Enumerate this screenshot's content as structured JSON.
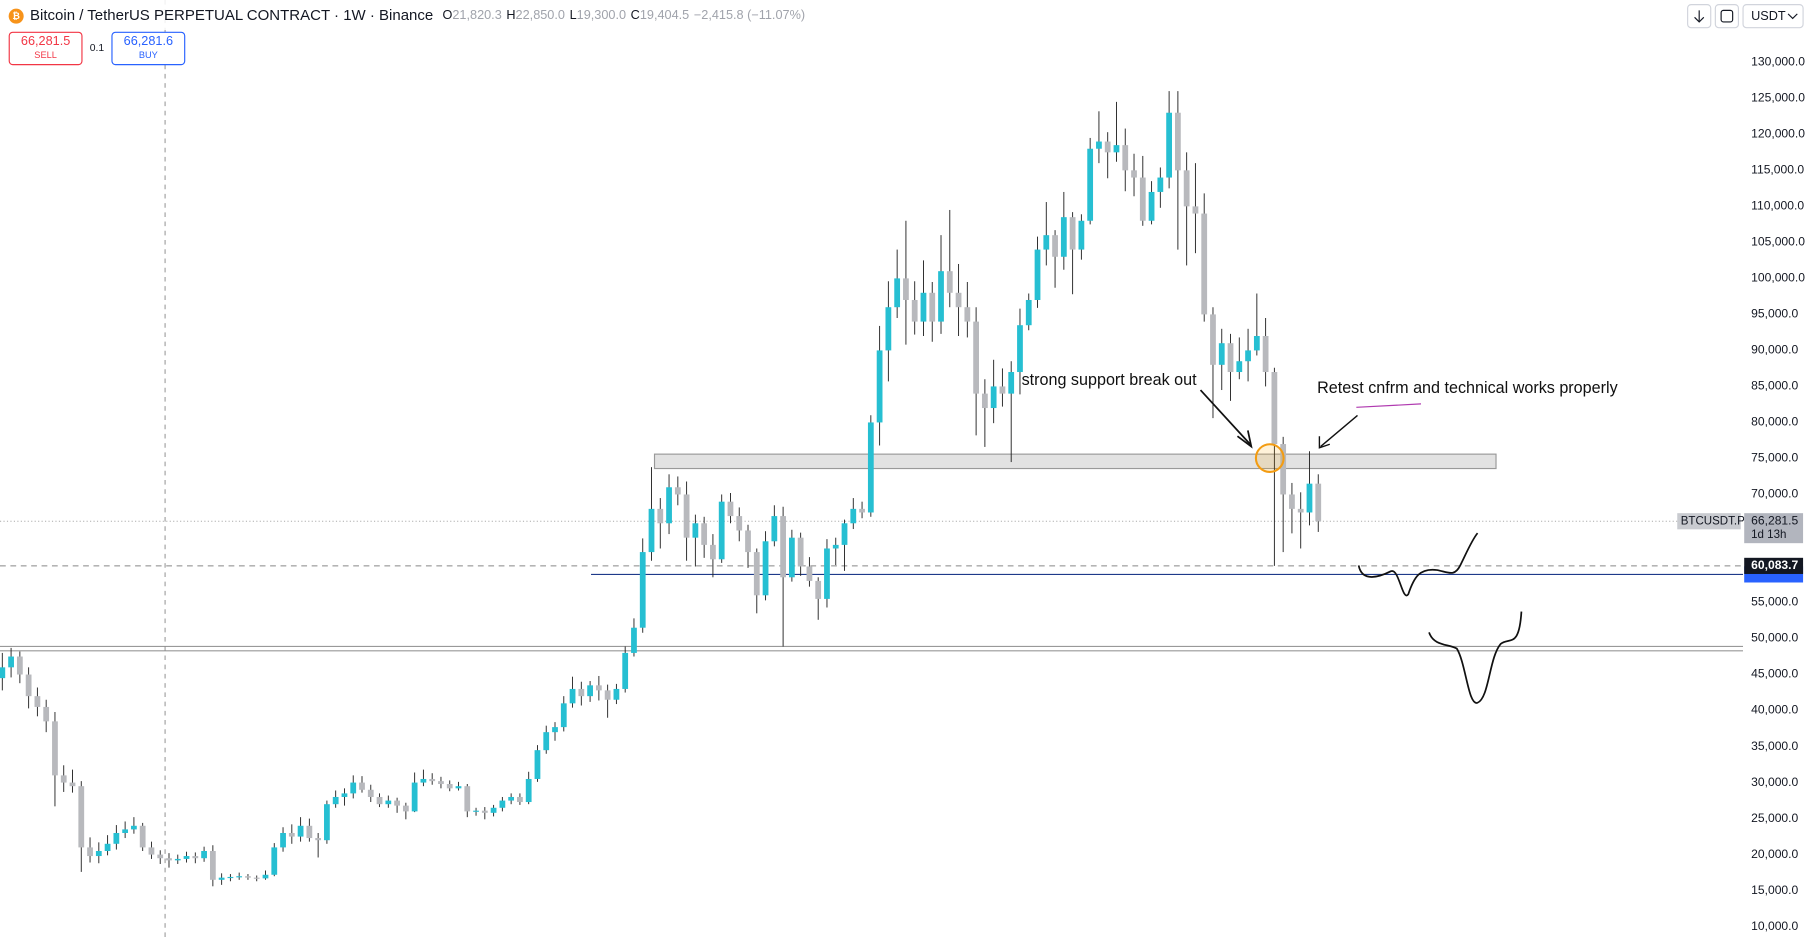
{
  "chart_data": {
    "type": "candlestick",
    "title": "Bitcoin / TetherUS PERPETUAL CONTRACT · 1W · Binance",
    "ohlc_legend": [
      [
        "O",
        "21,820.3"
      ],
      [
        "H",
        "22,850.0"
      ],
      [
        "L",
        "19,300.0"
      ],
      [
        "C",
        "19,404.5"
      ]
    ],
    "change": "−2,415.8 (−11.07%)",
    "currency": "USDT",
    "trade": {
      "sell_price": "66,281.5",
      "sell": "SELL",
      "qty": "0.1",
      "buy_price": "66,281.6",
      "buy": "BUY"
    },
    "annotations": [
      "strong support break out",
      "Retest cnfrm and  technical works properly"
    ],
    "ylim": [
      8560,
      138650
    ],
    "yticks": [
      {
        "value": 10000,
        "label": "10,000.0"
      },
      {
        "value": 15000,
        "label": "15,000.0"
      },
      {
        "value": 20000,
        "label": "20,000.0"
      },
      {
        "value": 25000,
        "label": "25,000.0"
      },
      {
        "value": 30000,
        "label": "30,000.0"
      },
      {
        "value": 35000,
        "label": "35,000.0"
      },
      {
        "value": 40000,
        "label": "40,000.0"
      },
      {
        "value": 45000,
        "label": "45,000.0"
      },
      {
        "value": 50000,
        "label": "50,000.0"
      },
      {
        "value": 55000,
        "label": "55,000.0"
      },
      {
        "value": 60000,
        "label": "60,000.0"
      },
      {
        "value": 65000,
        "label": "65,000.0"
      },
      {
        "value": 70000,
        "label": "70,000.0"
      },
      {
        "value": 75000,
        "label": "75,000.0"
      },
      {
        "value": 80000,
        "label": "80,000.0"
      },
      {
        "value": 85000,
        "label": "85,000.0"
      },
      {
        "value": 90000,
        "label": "90,000.0"
      },
      {
        "value": 95000,
        "label": "95,000.0"
      },
      {
        "value": 100000,
        "label": "100,000.0"
      },
      {
        "value": 105000,
        "label": "105,000.0"
      },
      {
        "value": 110000,
        "label": "110,000.0"
      },
      {
        "value": 115000,
        "label": "115,000.0"
      },
      {
        "value": 120000,
        "label": "120,000.0"
      },
      {
        "value": 125000,
        "label": "125,000.0"
      },
      {
        "value": 130000,
        "label": "130,000.0"
      }
    ],
    "up_color": "#26bfd2",
    "down_color": "#b8b9bd",
    "zone": [
      73600,
      75600
    ],
    "support_lines": [
      58900,
      48900,
      48300
    ],
    "price_labels": {
      "last": {
        "symbol": "BTCUSDT.P",
        "value": 66281.5,
        "label": "66,281.5",
        "countdown": "1d 13h"
      },
      "low": {
        "value": 60083.7,
        "label": "60,083.7"
      }
    },
    "candles": [
      [
        44500,
        48000,
        42800,
        46000
      ],
      [
        46000,
        48700,
        44600,
        47500
      ],
      [
        47500,
        48200,
        43800,
        45000
      ],
      [
        45000,
        46000,
        40300,
        42000
      ],
      [
        42000,
        43200,
        39200,
        40500
      ],
      [
        40500,
        41500,
        37000,
        38500
      ],
      [
        38500,
        39800,
        26700,
        31000
      ],
      [
        31000,
        32400,
        28700,
        30000
      ],
      [
        30000,
        31800,
        28600,
        29500
      ],
      [
        29500,
        30200,
        17600,
        21000
      ],
      [
        21000,
        22400,
        18900,
        19800
      ],
      [
        19800,
        21700,
        18800,
        20500
      ],
      [
        20500,
        22700,
        19900,
        21500
      ],
      [
        21500,
        24100,
        20700,
        23000
      ],
      [
        23000,
        24600,
        22300,
        23500
      ],
      [
        23500,
        25200,
        22900,
        24000
      ],
      [
        24000,
        24400,
        20500,
        21000
      ],
      [
        21000,
        21800,
        19400,
        20000
      ],
      [
        20000,
        20600,
        18700,
        19500
      ],
      [
        19500,
        20200,
        18200,
        19200
      ],
      [
        19200,
        20000,
        18700,
        19400
      ],
      [
        19400,
        20400,
        18900,
        19800
      ],
      [
        19800,
        20300,
        18800,
        19500
      ],
      [
        19500,
        21100,
        19000,
        20500
      ],
      [
        20500,
        21300,
        15600,
        16500
      ],
      [
        16500,
        17400,
        15800,
        16800
      ],
      [
        16800,
        17300,
        16300,
        16900
      ],
      [
        16900,
        17500,
        16500,
        17000
      ],
      [
        17000,
        17300,
        16500,
        16800
      ],
      [
        16800,
        17100,
        16300,
        16700
      ],
      [
        16700,
        17800,
        16500,
        17200
      ],
      [
        17200,
        21600,
        17000,
        21000
      ],
      [
        21000,
        23800,
        20400,
        23000
      ],
      [
        23000,
        24200,
        21500,
        22500
      ],
      [
        22500,
        25200,
        21800,
        24000
      ],
      [
        24000,
        25000,
        21800,
        22300
      ],
      [
        22300,
        23000,
        19600,
        22000
      ],
      [
        22000,
        27500,
        21500,
        27000
      ],
      [
        27000,
        28900,
        26500,
        28000
      ],
      [
        28000,
        29200,
        26800,
        28500
      ],
      [
        28500,
        31000,
        27800,
        30000
      ],
      [
        30000,
        30900,
        28600,
        29000
      ],
      [
        29000,
        29700,
        27300,
        28000
      ],
      [
        28000,
        28500,
        26600,
        27000
      ],
      [
        27000,
        28200,
        26500,
        27500
      ],
      [
        27500,
        27900,
        25800,
        26800
      ],
      [
        26800,
        27200,
        24900,
        26000
      ],
      [
        26000,
        31400,
        25900,
        30000
      ],
      [
        30000,
        31800,
        29500,
        30500
      ],
      [
        30500,
        31300,
        29700,
        30200
      ],
      [
        30200,
        30800,
        29200,
        29800
      ],
      [
        29800,
        30300,
        28800,
        29200
      ],
      [
        29200,
        30100,
        28900,
        29500
      ],
      [
        29500,
        29800,
        25200,
        26000
      ],
      [
        26000,
        26500,
        25400,
        26100
      ],
      [
        26100,
        26600,
        24900,
        25800
      ],
      [
        25800,
        26900,
        25300,
        26500
      ],
      [
        26500,
        28000,
        26000,
        27500
      ],
      [
        27500,
        28500,
        27000,
        28000
      ],
      [
        28000,
        28500,
        26900,
        27300
      ],
      [
        27300,
        31500,
        27000,
        30500
      ],
      [
        30500,
        35200,
        30100,
        34500
      ],
      [
        34500,
        37900,
        34000,
        37000
      ],
      [
        37000,
        38400,
        35800,
        37700
      ],
      [
        37700,
        42000,
        37100,
        41000
      ],
      [
        41000,
        44700,
        40400,
        43000
      ],
      [
        43000,
        44000,
        40700,
        42000
      ],
      [
        42000,
        44100,
        41200,
        43500
      ],
      [
        43500,
        44800,
        41400,
        42800
      ],
      [
        42800,
        43600,
        39000,
        41500
      ],
      [
        41500,
        43700,
        40900,
        43000
      ],
      [
        43000,
        48900,
        42500,
        48000
      ],
      [
        48000,
        52800,
        47500,
        51500
      ],
      [
        51500,
        63900,
        50800,
        62000
      ],
      [
        62000,
        73800,
        60800,
        68000
      ],
      [
        68000,
        69500,
        62500,
        66000
      ],
      [
        66000,
        72800,
        64500,
        71000
      ],
      [
        71000,
        72500,
        68500,
        70000
      ],
      [
        70000,
        71800,
        60800,
        64000
      ],
      [
        64000,
        67200,
        60000,
        66000
      ],
      [
        66000,
        66900,
        61200,
        63000
      ],
      [
        63000,
        64500,
        58500,
        61000
      ],
      [
        61000,
        70000,
        60500,
        69000
      ],
      [
        69000,
        70200,
        66000,
        67000
      ],
      [
        67000,
        68200,
        63500,
        65000
      ],
      [
        65000,
        65800,
        59800,
        62000
      ],
      [
        62000,
        62500,
        53500,
        56000
      ],
      [
        56000,
        64900,
        55300,
        63500
      ],
      [
        63500,
        68500,
        62800,
        67000
      ],
      [
        67000,
        68300,
        48900,
        58500
      ],
      [
        58500,
        65100,
        57900,
        64000
      ],
      [
        64000,
        64700,
        58700,
        60000
      ],
      [
        60000,
        61300,
        57200,
        58000
      ],
      [
        58000,
        58500,
        52600,
        55500
      ],
      [
        55500,
        63800,
        54300,
        62500
      ],
      [
        62500,
        64000,
        60200,
        63000
      ],
      [
        63000,
        66500,
        59400,
        66000
      ],
      [
        66000,
        69500,
        65200,
        68000
      ],
      [
        68000,
        69000,
        66700,
        67500
      ],
      [
        67500,
        81000,
        66900,
        80000
      ],
      [
        80000,
        93400,
        76800,
        90000
      ],
      [
        90000,
        99600,
        85700,
        96000
      ],
      [
        96000,
        104000,
        94500,
        100000
      ],
      [
        100000,
        108000,
        90800,
        97000
      ],
      [
        97000,
        99600,
        92200,
        94000
      ],
      [
        94000,
        102500,
        92000,
        98000
      ],
      [
        98000,
        99500,
        91200,
        94000
      ],
      [
        94000,
        106000,
        92300,
        101000
      ],
      [
        101000,
        109500,
        96000,
        98000
      ],
      [
        98000,
        102000,
        92000,
        96000
      ],
      [
        96000,
        99500,
        91800,
        94000
      ],
      [
        94000,
        96000,
        78200,
        84000
      ],
      [
        84000,
        86000,
        76600,
        82000
      ],
      [
        82000,
        88700,
        79900,
        85000
      ],
      [
        85000,
        87500,
        82200,
        84000
      ],
      [
        84000,
        88500,
        74500,
        87000
      ],
      [
        87000,
        95800,
        83900,
        93500
      ],
      [
        93500,
        97900,
        92800,
        97000
      ],
      [
        97000,
        105800,
        95900,
        104000
      ],
      [
        104000,
        110600,
        101800,
        106000
      ],
      [
        106000,
        106700,
        98700,
        103000
      ],
      [
        103000,
        112000,
        101200,
        108500
      ],
      [
        108500,
        109200,
        97800,
        104000
      ],
      [
        104000,
        108900,
        102600,
        108000
      ],
      [
        108000,
        119500,
        107500,
        118000
      ],
      [
        118000,
        123200,
        116000,
        119000
      ],
      [
        119000,
        120300,
        113900,
        117500
      ],
      [
        117500,
        124500,
        116200,
        118500
      ],
      [
        118500,
        120800,
        112100,
        115000
      ],
      [
        115000,
        117300,
        111400,
        114000
      ],
      [
        114000,
        117000,
        107300,
        108000
      ],
      [
        108000,
        113500,
        107500,
        112000
      ],
      [
        112000,
        115400,
        109800,
        114000
      ],
      [
        114000,
        126000,
        112500,
        123000
      ],
      [
        123000,
        126000,
        104000,
        115000
      ],
      [
        115000,
        117500,
        101800,
        110000
      ],
      [
        110000,
        116000,
        103500,
        109000
      ],
      [
        109000,
        111800,
        94000,
        95000
      ],
      [
        95000,
        96000,
        80600,
        88000
      ],
      [
        88000,
        93000,
        84500,
        91000
      ],
      [
        91000,
        92300,
        83000,
        87000
      ],
      [
        87000,
        91800,
        86000,
        88500
      ],
      [
        88500,
        93000,
        85700,
        90000
      ],
      [
        90000,
        97900,
        89300,
        92000
      ],
      [
        92000,
        94500,
        85000,
        87000
      ],
      [
        87000,
        87600,
        60083.7,
        77000
      ],
      [
        77000,
        78000,
        62000,
        70000
      ],
      [
        70000,
        71600,
        64600,
        68000
      ],
      [
        68000,
        70300,
        62500,
        67500
      ],
      [
        67500,
        76000,
        65700,
        71500
      ],
      [
        71500,
        72800,
        64800,
        66281.5
      ]
    ]
  }
}
